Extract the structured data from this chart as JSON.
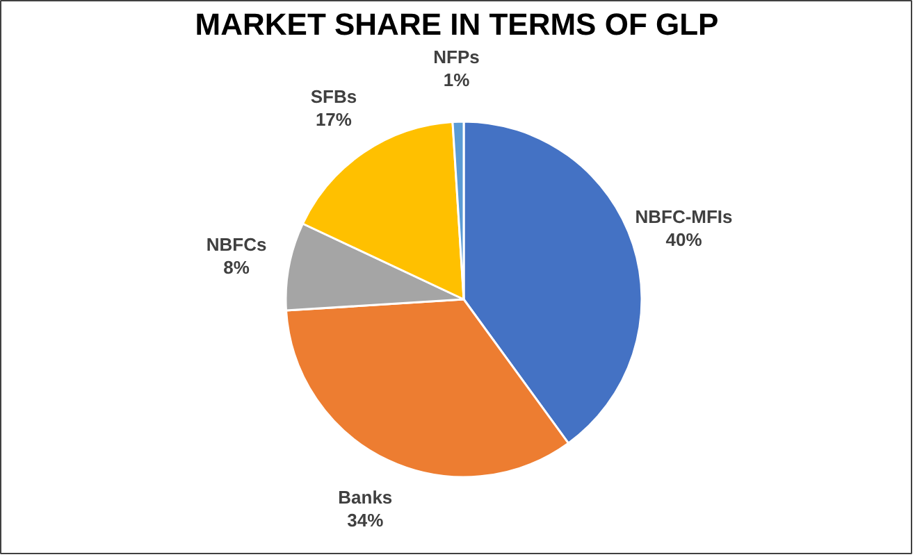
{
  "chart_data": {
    "type": "pie",
    "title": "MARKET SHARE IN TERMS OF GLP",
    "categories": [
      "NBFC-MFIs",
      "Banks",
      "NBFCs",
      "SFBs",
      "NFPs"
    ],
    "values": [
      40,
      34,
      8,
      17,
      1
    ],
    "colors": [
      "#4472c4",
      "#ed7d31",
      "#a5a5a5",
      "#ffc000",
      "#5b9bd5"
    ],
    "value_labels": [
      "40%",
      "34%",
      "8%",
      "17%",
      "1%"
    ]
  }
}
